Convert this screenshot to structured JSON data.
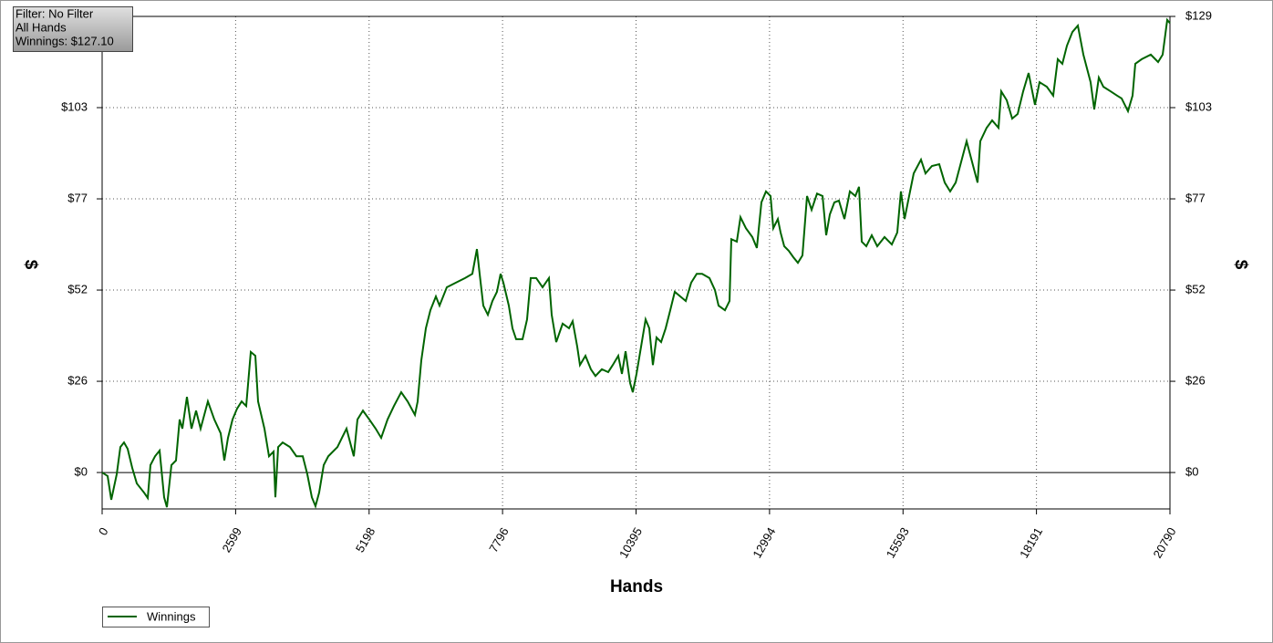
{
  "filter_box": {
    "lines": [
      "Filter: No Filter",
      "All Hands",
      "Winnings: $127.10"
    ]
  },
  "chart_data": {
    "type": "line",
    "x_label": "Hands",
    "y_label": "$",
    "y2_label": "$",
    "grid": true,
    "legend": "bottom-left",
    "xlim": [
      0,
      20790
    ],
    "xticks": [
      0,
      2599,
      5198,
      7796,
      10395,
      12994,
      15593,
      18191,
      20790
    ],
    "ylim": [
      -10.3,
      129
    ],
    "yticks": [
      {
        "value": 0,
        "label": "$0"
      },
      {
        "value": 25.8,
        "label": "$26"
      },
      {
        "value": 51.6,
        "label": "$52"
      },
      {
        "value": 77.4,
        "label": "$77"
      },
      {
        "value": 103.2,
        "label": "$103"
      },
      {
        "value": 129,
        "label": "$129"
      }
    ],
    "x": [
      0,
      107,
      178,
      284,
      355,
      426,
      497,
      586,
      675,
      817,
      888,
      941,
      1030,
      1119,
      1207,
      1261,
      1349,
      1438,
      1509,
      1562,
      1651,
      1740,
      1829,
      1917,
      2059,
      2184,
      2308,
      2379,
      2450,
      2539,
      2628,
      2716,
      2805,
      2894,
      2983,
      3036,
      3160,
      3249,
      3338,
      3373,
      3427,
      3515,
      3657,
      3782,
      3906,
      3995,
      4083,
      4154,
      4225,
      4314,
      4403,
      4581,
      4669,
      4758,
      4900,
      4971,
      5078,
      5202,
      5326,
      5433,
      5557,
      5681,
      5823,
      5948,
      6090,
      6143,
      6214,
      6303,
      6391,
      6498,
      6569,
      6711,
      6889,
      7066,
      7208,
      7297,
      7350,
      7421,
      7510,
      7599,
      7687,
      7758,
      7812,
      7918,
      7989,
      8060,
      8185,
      8273,
      8344,
      8451,
      8575,
      8699,
      8753,
      8841,
      8966,
      9090,
      9161,
      9250,
      9303,
      9410,
      9516,
      9605,
      9729,
      9853,
      9942,
      10049,
      10120,
      10191,
      10280,
      10332,
      10404,
      10493,
      10581,
      10652,
      10723,
      10794,
      10883,
      10972,
      11061,
      11149,
      11256,
      11363,
      11469,
      11576,
      11682,
      11824,
      11931,
      12002,
      12126,
      12215,
      12250,
      12357,
      12428,
      12534,
      12659,
      12747,
      12836,
      12925,
      13014,
      13067,
      13156,
      13209,
      13280,
      13369,
      13457,
      13546,
      13635,
      13724,
      13813,
      13919,
      14026,
      14097,
      14168,
      14256,
      14345,
      14452,
      14558,
      14665,
      14736,
      14789,
      14878,
      14984,
      15091,
      15233,
      15375,
      15481,
      15552,
      15623,
      15694,
      15801,
      15943,
      16031,
      16156,
      16298,
      16405,
      16511,
      16618,
      16760,
      16831,
      16902,
      16973,
      17044,
      17097,
      17221,
      17328,
      17452,
      17505,
      17612,
      17718,
      17825,
      17932,
      18038,
      18162,
      18251,
      18393,
      18517,
      18606,
      18695,
      18784,
      18891,
      18997,
      19104,
      19245,
      19316,
      19405,
      19494,
      19636,
      19760,
      19849,
      19973,
      20062,
      20115,
      20240,
      20417,
      20559,
      20648,
      20737,
      20790
    ],
    "series": [
      {
        "name": "Winnings",
        "color": "#006400",
        "values": [
          0,
          -1.0,
          -7.7,
          -0.5,
          7.2,
          8.5,
          6.7,
          1.3,
          -3.1,
          -5.7,
          -7.2,
          2.1,
          4.6,
          6.2,
          -7.0,
          -9.8,
          2.1,
          3.4,
          15.0,
          12.4,
          21.4,
          12.4,
          17.5,
          12.4,
          20.1,
          15.0,
          11.1,
          3.4,
          9.8,
          15.0,
          18.1,
          20.1,
          18.8,
          34.1,
          33.0,
          20.1,
          12.4,
          4.6,
          5.9,
          -7.0,
          7.2,
          8.5,
          7.2,
          4.6,
          4.6,
          -0.5,
          -7.0,
          -9.5,
          -5.7,
          2.1,
          4.6,
          7.2,
          9.8,
          12.4,
          4.6,
          15.0,
          17.5,
          15.0,
          12.4,
          9.8,
          15.0,
          18.8,
          22.7,
          20.1,
          16.3,
          20.1,
          31.7,
          40.8,
          45.9,
          49.8,
          47.2,
          52.4,
          53.7,
          55.0,
          56.2,
          63.2,
          56.2,
          47.2,
          44.6,
          48.5,
          51.1,
          56.2,
          53.7,
          47.2,
          40.8,
          37.7,
          37.7,
          43.3,
          55.0,
          55.0,
          52.4,
          55.0,
          44.6,
          36.9,
          42.1,
          40.8,
          42.8,
          35.6,
          30.4,
          33.0,
          29.2,
          27.3,
          29.2,
          28.4,
          30.4,
          33.0,
          27.9,
          34.3,
          25.3,
          22.7,
          27.9,
          35.6,
          43.3,
          40.8,
          30.4,
          38.2,
          36.9,
          40.8,
          45.9,
          51.1,
          49.8,
          48.5,
          53.7,
          56.2,
          56.2,
          55.0,
          51.6,
          47.2,
          45.9,
          48.5,
          66.0,
          65.3,
          72.2,
          69.1,
          66.6,
          63.5,
          76.4,
          79.5,
          78.2,
          69.1,
          71.7,
          67.9,
          64.0,
          62.7,
          60.9,
          59.3,
          61.4,
          78.2,
          74.3,
          78.9,
          78.2,
          67.1,
          73.0,
          76.4,
          76.9,
          71.7,
          79.5,
          78.2,
          80.8,
          65.3,
          64.0,
          67.1,
          64.0,
          66.6,
          64.5,
          67.9,
          79.5,
          71.7,
          76.9,
          84.6,
          88.5,
          84.6,
          86.7,
          87.2,
          82.0,
          79.5,
          82.0,
          89.8,
          93.7,
          89.8,
          85.9,
          82.0,
          93.7,
          97.5,
          99.6,
          97.5,
          107.8,
          105.3,
          100.1,
          101.4,
          107.8,
          113.0,
          104.0,
          110.4,
          109.1,
          106.6,
          116.9,
          115.6,
          120.7,
          124.6,
          126.4,
          118.2,
          110.4,
          102.7,
          111.7,
          109.1,
          107.8,
          106.6,
          105.8,
          102.2,
          106.6,
          115.6,
          116.9,
          118.2,
          116.1,
          118.2,
          128.0,
          127.1
        ]
      }
    ]
  }
}
